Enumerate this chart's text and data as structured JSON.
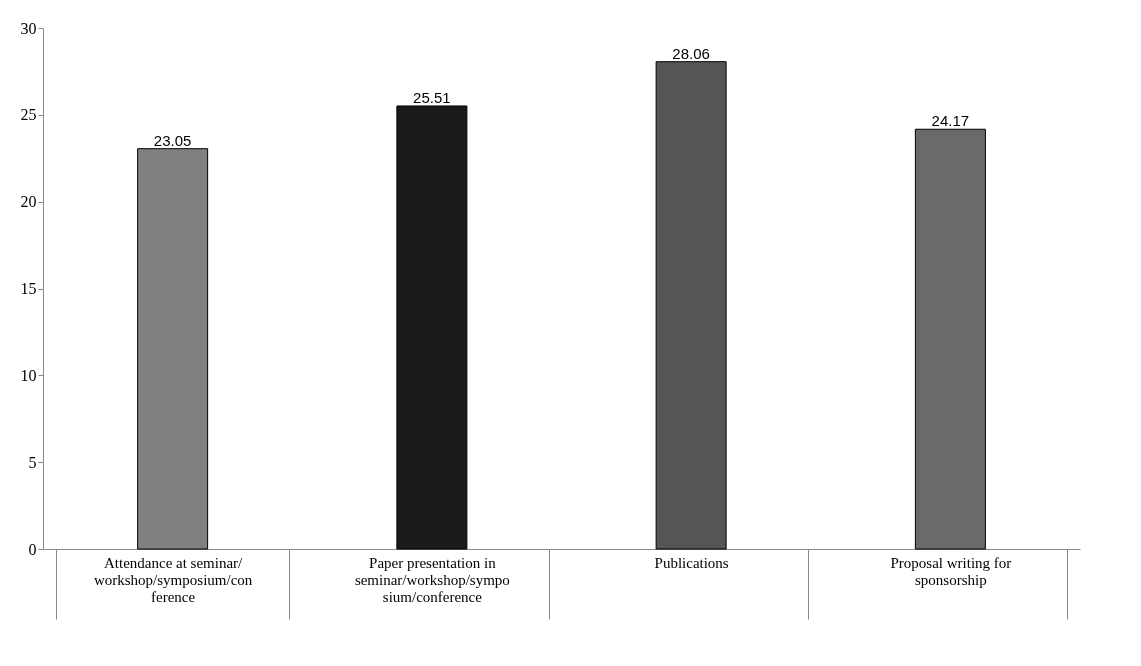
{
  "chart_data": {
    "type": "bar",
    "categories": [
      "Attendance at seminar/workshop/symposium/conference",
      "Paper presentation in seminar/workshop/symposium/conference",
      "Publications",
      "Proposal writing for sponsorship"
    ],
    "values": [
      23.05,
      25.51,
      28.06,
      24.17
    ],
    "colors": [
      "#808080",
      "#1a1a1a",
      "#555555",
      "#6a6a6a"
    ],
    "ylim": [
      0,
      30
    ],
    "yticks": [
      0,
      5,
      10,
      15,
      20,
      25,
      30
    ],
    "data_labels": true,
    "grid": false
  }
}
